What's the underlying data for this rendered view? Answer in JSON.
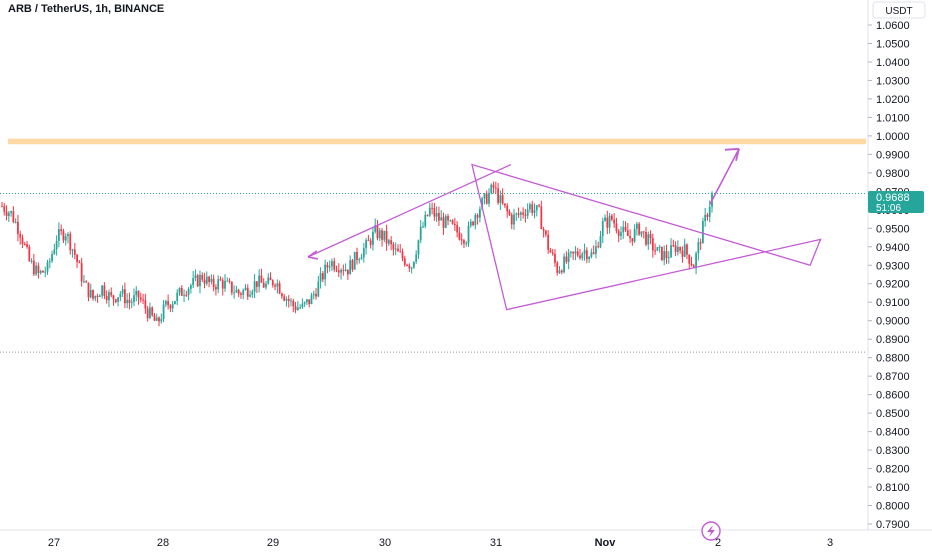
{
  "header": {
    "title": "ARB / TetherUS, 1h, BINANCE"
  },
  "price_axis": {
    "currency": "USDT",
    "current_price": "0.9688",
    "countdown": "51:06"
  },
  "icons": {
    "bottom_logo": "lightning-bolt-icon"
  },
  "colors": {
    "up": "#26a69a",
    "down": "#f23645",
    "pattern_lines": "#c45bd6",
    "resistance_band": "#ffd9a3",
    "axis_text": "#131722",
    "current_price_bg": "#26a69a"
  },
  "chart_data": {
    "type": "candlestick",
    "title": "ARB / TetherUS, 1h, BINANCE",
    "xlabel": "",
    "ylabel": "",
    "x_tick_labels": [
      "27",
      "28",
      "29",
      "30",
      "31",
      "Nov",
      "2",
      "3"
    ],
    "y_tick_labels": [
      "1.0600",
      "1.0500",
      "1.0400",
      "1.0300",
      "1.0200",
      "1.0100",
      "1.0000",
      "0.9900",
      "0.9800",
      "0.9700",
      "0.9600",
      "0.9500",
      "0.9400",
      "0.9300",
      "0.9200",
      "0.9100",
      "0.9000",
      "0.8900",
      "0.8800",
      "0.8700",
      "0.8600",
      "0.8500",
      "0.8400",
      "0.8300",
      "0.8200",
      "0.8100",
      "0.8000",
      "0.7900"
    ],
    "ylim": [
      0.787,
      1.065
    ],
    "grid": false,
    "current_price": 0.9688,
    "dotted_levels": [
      0.9688,
      0.883
    ],
    "resistance_zone": [
      0.9955,
      0.9985
    ],
    "close_path": [
      [
        0,
        0.962
      ],
      [
        4,
        0.958
      ],
      [
        8,
        0.948
      ],
      [
        12,
        0.932
      ],
      [
        16,
        0.925
      ],
      [
        20,
        0.928
      ],
      [
        24,
        0.945
      ],
      [
        28,
        0.948
      ],
      [
        32,
        0.936
      ],
      [
        36,
        0.92
      ],
      [
        40,
        0.912
      ],
      [
        44,
        0.918
      ],
      [
        48,
        0.912
      ],
      [
        52,
        0.915
      ],
      [
        56,
        0.91
      ],
      [
        60,
        0.913
      ],
      [
        64,
        0.905
      ],
      [
        68,
        0.898
      ],
      [
        72,
        0.908
      ],
      [
        76,
        0.912
      ],
      [
        80,
        0.917
      ],
      [
        84,
        0.92
      ],
      [
        88,
        0.924
      ],
      [
        92,
        0.919
      ],
      [
        96,
        0.921
      ],
      [
        100,
        0.918
      ],
      [
        104,
        0.915
      ],
      [
        108,
        0.917
      ],
      [
        112,
        0.921
      ],
      [
        116,
        0.919
      ],
      [
        120,
        0.922
      ],
      [
        124,
        0.914
      ],
      [
        128,
        0.908
      ],
      [
        132,
        0.907
      ],
      [
        136,
        0.912
      ],
      [
        140,
        0.922
      ],
      [
        144,
        0.932
      ],
      [
        148,
        0.93
      ],
      [
        152,
        0.928
      ],
      [
        156,
        0.935
      ],
      [
        160,
        0.94
      ],
      [
        164,
        0.948
      ],
      [
        168,
        0.945
      ],
      [
        172,
        0.938
      ],
      [
        176,
        0.934
      ],
      [
        180,
        0.93
      ],
      [
        184,
        0.948
      ],
      [
        188,
        0.96
      ],
      [
        192,
        0.955
      ],
      [
        196,
        0.952
      ],
      [
        200,
        0.948
      ],
      [
        204,
        0.945
      ],
      [
        208,
        0.958
      ],
      [
        212,
        0.965
      ],
      [
        216,
        0.972
      ],
      [
        220,
        0.962
      ],
      [
        224,
        0.955
      ],
      [
        228,
        0.958
      ],
      [
        232,
        0.962
      ],
      [
        236,
        0.958
      ],
      [
        240,
        0.94
      ],
      [
        244,
        0.928
      ],
      [
        248,
        0.932
      ],
      [
        252,
        0.936
      ],
      [
        256,
        0.938
      ],
      [
        260,
        0.935
      ],
      [
        264,
        0.952
      ],
      [
        268,
        0.955
      ],
      [
        272,
        0.948
      ],
      [
        276,
        0.945
      ],
      [
        280,
        0.95
      ],
      [
        284,
        0.943
      ],
      [
        288,
        0.937
      ],
      [
        292,
        0.935
      ],
      [
        296,
        0.94
      ],
      [
        300,
        0.938
      ],
      [
        304,
        0.93
      ],
      [
        308,
        0.95
      ],
      [
        312,
        0.968
      ]
    ],
    "annotations": [
      {
        "type": "diamond",
        "points": [
          [
            0.9355,
            0.93
          ],
          [
            0.545,
            0.9845
          ],
          [
            0.585,
            0.906
          ],
          [
            0.9475,
            0.944
          ]
        ]
      },
      {
        "type": "arrow",
        "direction": "up-right"
      },
      {
        "type": "arrow",
        "direction": "left"
      }
    ]
  }
}
